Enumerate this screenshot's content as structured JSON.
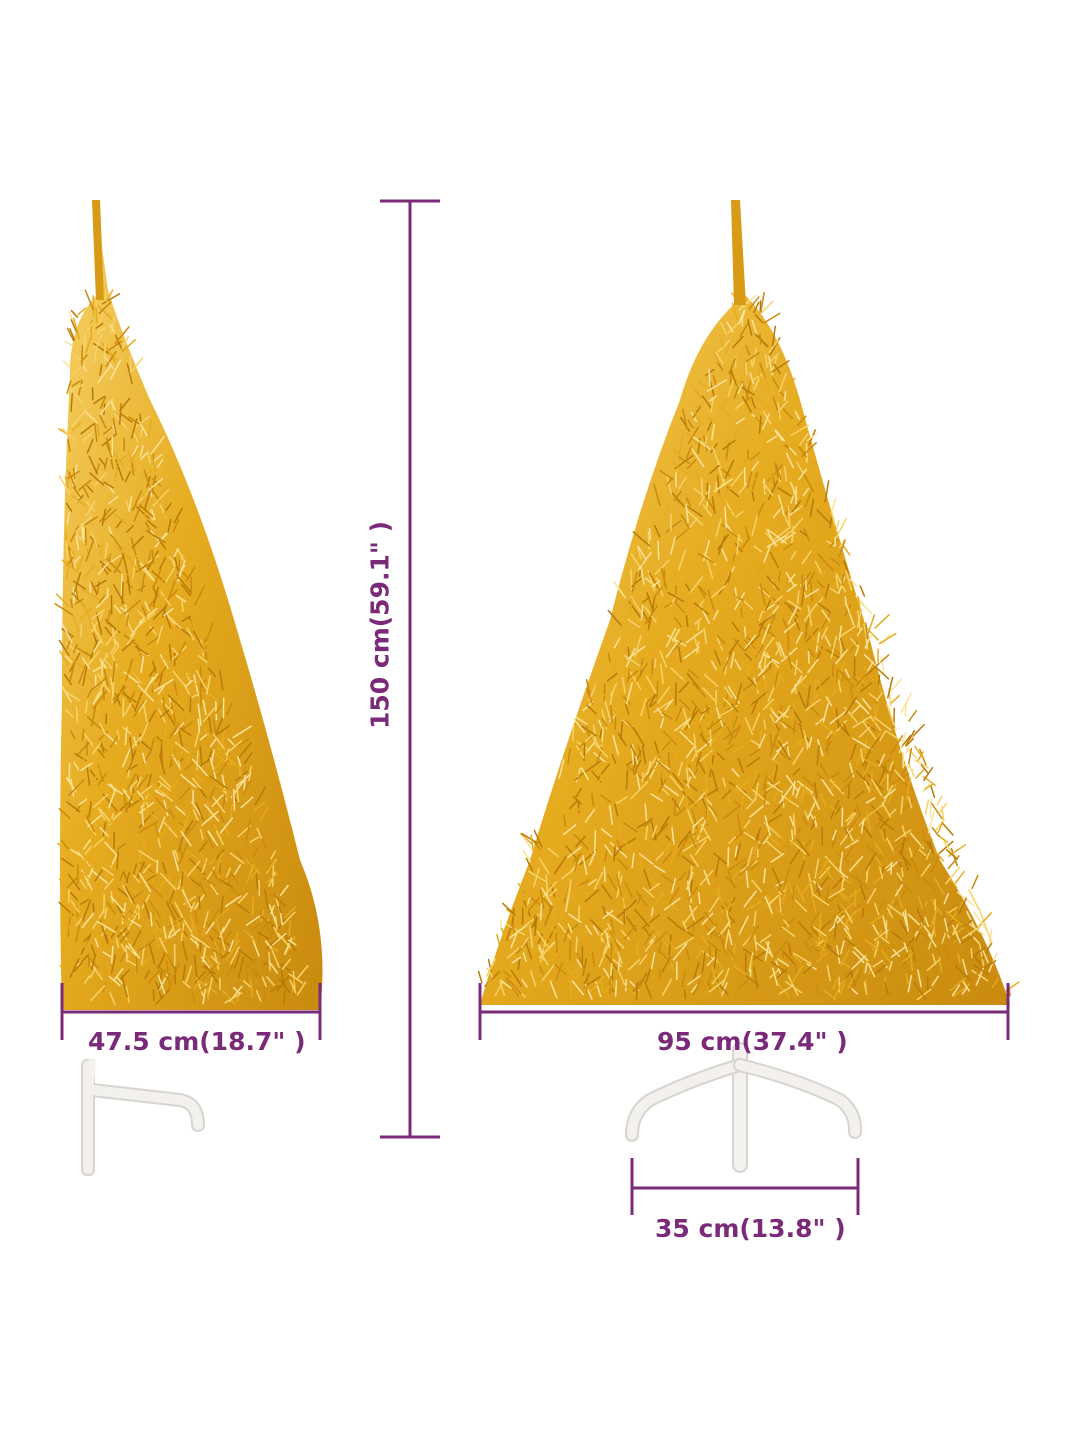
{
  "colors": {
    "dimension_line": "#7a2a78",
    "tree_gold_dark": "#c98a0e",
    "tree_gold_mid": "#e6ab1f",
    "tree_gold_light": "#f7d36a",
    "stand": "#f3f1ee",
    "stand_shadow": "#d8d4cf"
  },
  "dimensions": {
    "height_label": "150 cm(59.1\" )",
    "side_width_label": "47.5 cm(18.7\" )",
    "front_width_label": "95 cm(37.4\" )",
    "base_width_label": "35 cm(13.8\" )"
  },
  "views": {
    "side": {
      "icon": "half-christmas-tree-side-view"
    },
    "front": {
      "icon": "christmas-tree-front-view"
    }
  }
}
